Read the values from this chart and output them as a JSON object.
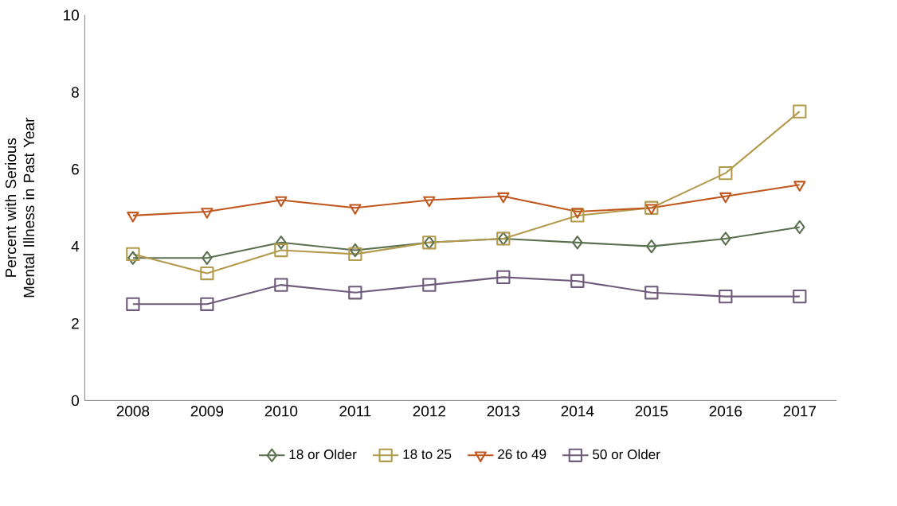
{
  "chart_data": {
    "type": "line",
    "ylabel": "Percent with Serious Mental Illness in Past Year",
    "categories": [
      "2008",
      "2009",
      "2010",
      "2011",
      "2012",
      "2013",
      "2014",
      "2015",
      "2016",
      "2017"
    ],
    "series": [
      {
        "name": "18 or Older",
        "color": "#5a7050",
        "marker": "diamond",
        "values": [
          3.7,
          3.7,
          4.1,
          3.9,
          4.1,
          4.2,
          4.1,
          4.0,
          4.2,
          4.5
        ]
      },
      {
        "name": "18 to 25",
        "color": "#b39b4e",
        "marker": "square",
        "values": [
          3.8,
          3.3,
          3.9,
          3.8,
          4.1,
          4.2,
          4.8,
          5.0,
          5.9,
          7.5
        ]
      },
      {
        "name": "26 to 49",
        "color": "#c0571e",
        "marker": "triangle",
        "values": [
          4.8,
          4.9,
          5.2,
          5.0,
          5.2,
          5.3,
          4.9,
          5.0,
          5.3,
          5.6
        ]
      },
      {
        "name": "50 or Older",
        "color": "#6e5a7a",
        "marker": "square",
        "values": [
          2.5,
          2.5,
          3.0,
          2.8,
          3.0,
          3.2,
          3.1,
          2.8,
          2.7,
          2.7
        ]
      }
    ],
    "ylim": [
      0,
      10
    ],
    "yticks": [
      0,
      2,
      4,
      6,
      8,
      10
    ],
    "legend": "bottom",
    "grid": false,
    "line_style": "solid"
  }
}
